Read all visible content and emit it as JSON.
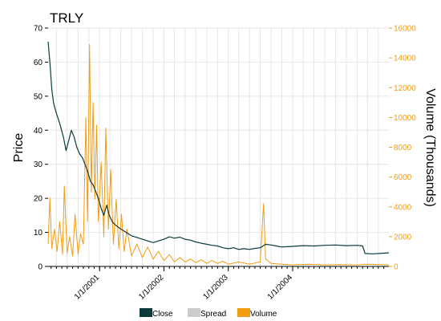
{
  "chart_data": {
    "type": "line",
    "title": "TRLY",
    "ylabel": "Price",
    "y2label": "Volume (Thousands)",
    "ylim": [
      0,
      70
    ],
    "y2lim": [
      0,
      16000
    ],
    "xlim": [
      "2000-03-15",
      "2005-06-30"
    ],
    "y_ticks": [
      "0",
      "10",
      "20",
      "30",
      "40",
      "50",
      "60",
      "70"
    ],
    "y2_ticks": [
      "0",
      "2000",
      "4000",
      "6000",
      "8000",
      "10000",
      "12000",
      "14000",
      "16000"
    ],
    "x_tick_labels": [
      {
        "date": "2001-01-01",
        "label": "1/1/2001"
      },
      {
        "date": "2002-01-01",
        "label": "1/1/2002"
      },
      {
        "date": "2003-01-01",
        "label": "1/1/2003"
      },
      {
        "date": "2004-01-01",
        "label": "1/1/2004"
      }
    ],
    "grid": true,
    "legend_position": "bottom",
    "colors": {
      "close": "#0b3b3c",
      "spread": "#cccccc",
      "volume": "#f39c12",
      "grid": "#e6e6e6"
    },
    "series": [
      {
        "name": "Close",
        "axis": "left",
        "points": [
          [
            "2000-03-15",
            66
          ],
          [
            "2000-03-25",
            60
          ],
          [
            "2000-04-05",
            52
          ],
          [
            "2000-04-15",
            48
          ],
          [
            "2000-05-01",
            45
          ],
          [
            "2000-05-20",
            42
          ],
          [
            "2000-06-10",
            38
          ],
          [
            "2000-06-25",
            34
          ],
          [
            "2000-07-10",
            37
          ],
          [
            "2000-07-25",
            40
          ],
          [
            "2000-08-10",
            38
          ],
          [
            "2000-08-25",
            35
          ],
          [
            "2000-09-10",
            33
          ],
          [
            "2000-09-25",
            32
          ],
          [
            "2000-10-10",
            30
          ],
          [
            "2000-10-25",
            28
          ],
          [
            "2000-11-10",
            25
          ],
          [
            "2000-11-25",
            24
          ],
          [
            "2000-12-10",
            22
          ],
          [
            "2000-12-25",
            20
          ],
          [
            "2001-01-10",
            17
          ],
          [
            "2001-01-25",
            15
          ],
          [
            "2001-02-10",
            18
          ],
          [
            "2001-02-25",
            15
          ],
          [
            "2001-03-15",
            13
          ],
          [
            "2001-04-05",
            12
          ],
          [
            "2001-05-01",
            11
          ],
          [
            "2001-06-01",
            10
          ],
          [
            "2001-07-01",
            9
          ],
          [
            "2001-08-01",
            8.5
          ],
          [
            "2001-09-01",
            8
          ],
          [
            "2001-10-01",
            7.5
          ],
          [
            "2001-11-01",
            7
          ],
          [
            "2001-12-01",
            7.5
          ],
          [
            "2002-01-01",
            8
          ],
          [
            "2002-02-01",
            8.7
          ],
          [
            "2002-03-01",
            8.3
          ],
          [
            "2002-04-01",
            8.6
          ],
          [
            "2002-05-01",
            8
          ],
          [
            "2002-06-01",
            7.7
          ],
          [
            "2002-07-01",
            7.2
          ],
          [
            "2002-08-01",
            6.8
          ],
          [
            "2002-09-01",
            6.5
          ],
          [
            "2002-10-01",
            6.2
          ],
          [
            "2002-11-01",
            6
          ],
          [
            "2002-12-01",
            5.5
          ],
          [
            "2003-01-01",
            5.2
          ],
          [
            "2003-02-01",
            5.5
          ],
          [
            "2003-03-01",
            5
          ],
          [
            "2003-04-01",
            5.2
          ],
          [
            "2003-05-01",
            5
          ],
          [
            "2003-06-01",
            5.3
          ],
          [
            "2003-07-01",
            5.5
          ],
          [
            "2003-08-01",
            6.5
          ],
          [
            "2003-09-01",
            6.3
          ],
          [
            "2003-10-01",
            6
          ],
          [
            "2003-11-01",
            5.7
          ],
          [
            "2003-12-01",
            5.8
          ],
          [
            "2004-01-01",
            5.9
          ],
          [
            "2004-03-01",
            6.1
          ],
          [
            "2004-05-01",
            6
          ],
          [
            "2004-07-01",
            6.2
          ],
          [
            "2004-09-01",
            6.3
          ],
          [
            "2004-11-01",
            6.1
          ],
          [
            "2005-01-01",
            6.2
          ],
          [
            "2005-02-01",
            6
          ],
          [
            "2005-02-15",
            3.8
          ],
          [
            "2005-04-01",
            3.7
          ],
          [
            "2005-06-01",
            3.9
          ],
          [
            "2005-06-30",
            4
          ]
        ]
      },
      {
        "name": "Spread",
        "axis": "left",
        "points": []
      },
      {
        "name": "Volume",
        "axis": "right",
        "points": [
          [
            "2000-03-15",
            1500
          ],
          [
            "2000-03-25",
            4600
          ],
          [
            "2000-04-05",
            1200
          ],
          [
            "2000-04-20",
            2500
          ],
          [
            "2000-05-05",
            1000
          ],
          [
            "2000-05-20",
            3000
          ],
          [
            "2000-06-05",
            800
          ],
          [
            "2000-06-15",
            5400
          ],
          [
            "2000-07-01",
            900
          ],
          [
            "2000-07-15",
            2000
          ],
          [
            "2000-08-01",
            700
          ],
          [
            "2000-08-15",
            3500
          ],
          [
            "2000-09-01",
            800
          ],
          [
            "2000-09-15",
            2200
          ],
          [
            "2000-10-01",
            1500
          ],
          [
            "2000-10-15",
            10000
          ],
          [
            "2000-10-25",
            3000
          ],
          [
            "2000-11-05",
            14900
          ],
          [
            "2000-11-15",
            5000
          ],
          [
            "2000-11-25",
            11000
          ],
          [
            "2000-12-05",
            4500
          ],
          [
            "2000-12-15",
            9500
          ],
          [
            "2000-12-25",
            3000
          ],
          [
            "2001-01-10",
            7000
          ],
          [
            "2001-01-25",
            2000
          ],
          [
            "2001-02-05",
            9300
          ],
          [
            "2001-02-20",
            2500
          ],
          [
            "2001-03-05",
            6500
          ],
          [
            "2001-03-20",
            1500
          ],
          [
            "2001-04-05",
            4500
          ],
          [
            "2001-04-20",
            1200
          ],
          [
            "2001-05-05",
            3500
          ],
          [
            "2001-05-20",
            1000
          ],
          [
            "2001-06-05",
            2500
          ],
          [
            "2001-07-01",
            700
          ],
          [
            "2001-08-01",
            1500
          ],
          [
            "2001-09-01",
            600
          ],
          [
            "2001-10-01",
            1300
          ],
          [
            "2001-11-01",
            500
          ],
          [
            "2001-12-01",
            1000
          ],
          [
            "2002-01-01",
            400
          ],
          [
            "2002-02-01",
            800
          ],
          [
            "2002-03-01",
            300
          ],
          [
            "2002-04-01",
            600
          ],
          [
            "2002-05-01",
            300
          ],
          [
            "2002-06-01",
            500
          ],
          [
            "2002-07-01",
            250
          ],
          [
            "2002-08-01",
            450
          ],
          [
            "2002-09-01",
            200
          ],
          [
            "2002-10-01",
            400
          ],
          [
            "2002-11-01",
            200
          ],
          [
            "2002-12-01",
            350
          ],
          [
            "2003-01-01",
            150
          ],
          [
            "2003-03-01",
            300
          ],
          [
            "2003-05-01",
            150
          ],
          [
            "2003-07-01",
            300
          ],
          [
            "2003-07-20",
            4200
          ],
          [
            "2003-08-01",
            500
          ],
          [
            "2003-09-01",
            200
          ],
          [
            "2003-11-01",
            150
          ],
          [
            "2004-01-01",
            100
          ],
          [
            "2004-04-01",
            150
          ],
          [
            "2004-07-01",
            100
          ],
          [
            "2004-10-01",
            120
          ],
          [
            "2005-01-01",
            100
          ],
          [
            "2005-03-01",
            150
          ],
          [
            "2005-06-30",
            100
          ]
        ]
      }
    ]
  }
}
